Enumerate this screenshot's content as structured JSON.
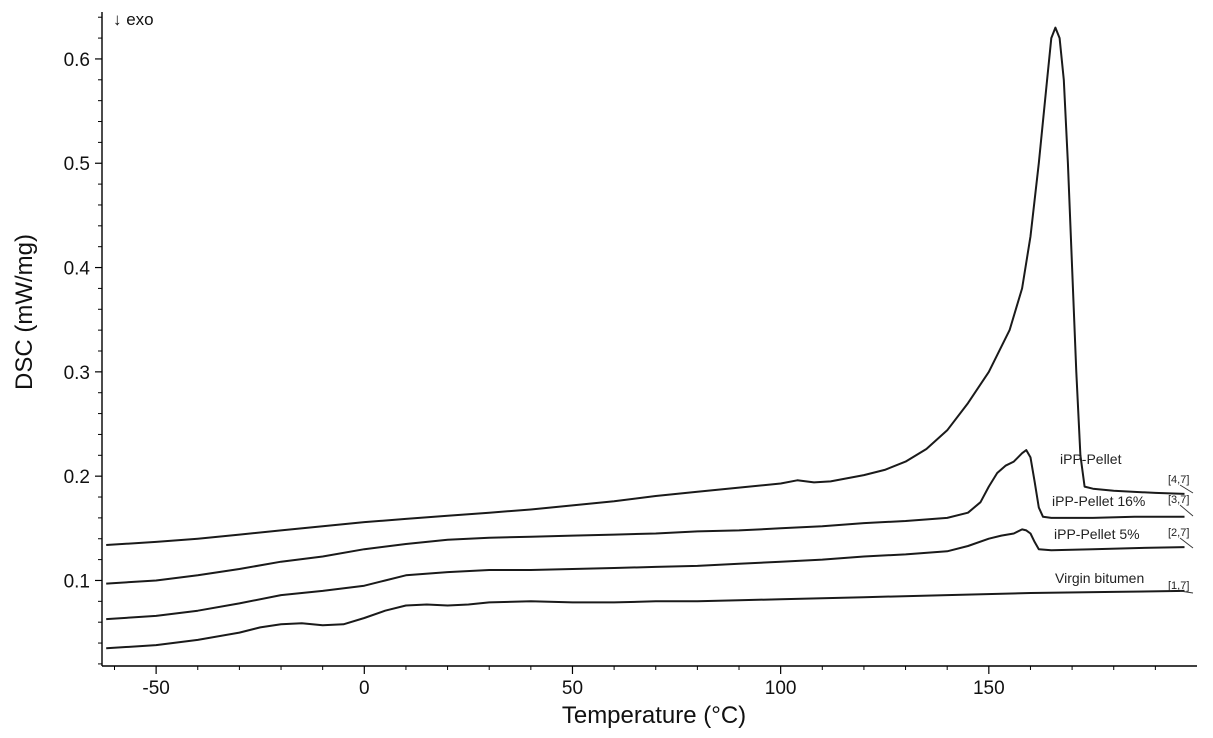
{
  "chart_data": {
    "type": "line",
    "title": "",
    "xlabel": "Temperature (°C)",
    "ylabel": "DSC  (mW/mg)",
    "annotation": "↓ exo",
    "xlim": [
      -63,
      200
    ],
    "ylim": [
      0.018,
      0.645
    ],
    "xticks": [
      -50,
      0,
      50,
      100,
      150
    ],
    "xtick_labels": [
      "-50",
      "0",
      "50",
      "100",
      "150"
    ],
    "yticks": [
      0.1,
      0.2,
      0.3,
      0.4,
      0.5,
      0.6
    ],
    "ytick_labels": [
      "0.1",
      "0.2",
      "0.3",
      "0.4",
      "0.5",
      "0.6"
    ],
    "grid": false,
    "legend": "inline labels at right end of curves",
    "series": [
      {
        "name": "iPP-Pellet",
        "tag": "[4,7]",
        "points": [
          [
            -62,
            0.134
          ],
          [
            -50,
            0.137
          ],
          [
            -40,
            0.14
          ],
          [
            -30,
            0.144
          ],
          [
            -20,
            0.148
          ],
          [
            -10,
            0.152
          ],
          [
            0,
            0.156
          ],
          [
            10,
            0.159
          ],
          [
            20,
            0.162
          ],
          [
            30,
            0.165
          ],
          [
            40,
            0.168
          ],
          [
            50,
            0.172
          ],
          [
            60,
            0.176
          ],
          [
            70,
            0.181
          ],
          [
            80,
            0.185
          ],
          [
            90,
            0.189
          ],
          [
            100,
            0.193
          ],
          [
            104,
            0.196
          ],
          [
            108,
            0.194
          ],
          [
            112,
            0.195
          ],
          [
            120,
            0.201
          ],
          [
            125,
            0.206
          ],
          [
            130,
            0.214
          ],
          [
            135,
            0.226
          ],
          [
            140,
            0.244
          ],
          [
            145,
            0.27
          ],
          [
            150,
            0.3
          ],
          [
            155,
            0.34
          ],
          [
            158,
            0.38
          ],
          [
            160,
            0.43
          ],
          [
            162,
            0.5
          ],
          [
            164,
            0.58
          ],
          [
            165,
            0.62
          ],
          [
            166,
            0.63
          ],
          [
            167,
            0.62
          ],
          [
            168,
            0.58
          ],
          [
            169,
            0.5
          ],
          [
            170,
            0.4
          ],
          [
            171,
            0.3
          ],
          [
            172,
            0.22
          ],
          [
            173,
            0.19
          ],
          [
            175,
            0.188
          ],
          [
            180,
            0.186
          ],
          [
            190,
            0.184
          ],
          [
            197,
            0.183
          ]
        ]
      },
      {
        "name": "iPP-Pellet 16%",
        "tag": "[3,7]",
        "points": [
          [
            -62,
            0.097
          ],
          [
            -50,
            0.1
          ],
          [
            -40,
            0.105
          ],
          [
            -30,
            0.111
          ],
          [
            -20,
            0.118
          ],
          [
            -10,
            0.123
          ],
          [
            0,
            0.13
          ],
          [
            10,
            0.135
          ],
          [
            20,
            0.139
          ],
          [
            30,
            0.141
          ],
          [
            40,
            0.142
          ],
          [
            50,
            0.143
          ],
          [
            60,
            0.144
          ],
          [
            70,
            0.145
          ],
          [
            80,
            0.147
          ],
          [
            90,
            0.148
          ],
          [
            100,
            0.15
          ],
          [
            110,
            0.152
          ],
          [
            120,
            0.155
          ],
          [
            130,
            0.157
          ],
          [
            140,
            0.16
          ],
          [
            145,
            0.165
          ],
          [
            148,
            0.175
          ],
          [
            150,
            0.19
          ],
          [
            152,
            0.203
          ],
          [
            154,
            0.21
          ],
          [
            156,
            0.214
          ],
          [
            158,
            0.222
          ],
          [
            159,
            0.225
          ],
          [
            160,
            0.218
          ],
          [
            161,
            0.195
          ],
          [
            162,
            0.17
          ],
          [
            163,
            0.161
          ],
          [
            165,
            0.16
          ],
          [
            175,
            0.16
          ],
          [
            185,
            0.161
          ],
          [
            197,
            0.161
          ]
        ]
      },
      {
        "name": "iPP-Pellet 5%",
        "tag": "[2,7]",
        "points": [
          [
            -62,
            0.063
          ],
          [
            -50,
            0.066
          ],
          [
            -40,
            0.071
          ],
          [
            -30,
            0.078
          ],
          [
            -20,
            0.086
          ],
          [
            -10,
            0.09
          ],
          [
            0,
            0.095
          ],
          [
            5,
            0.1
          ],
          [
            10,
            0.105
          ],
          [
            20,
            0.108
          ],
          [
            30,
            0.11
          ],
          [
            40,
            0.11
          ],
          [
            50,
            0.111
          ],
          [
            60,
            0.112
          ],
          [
            70,
            0.113
          ],
          [
            80,
            0.114
          ],
          [
            90,
            0.116
          ],
          [
            100,
            0.118
          ],
          [
            110,
            0.12
          ],
          [
            120,
            0.123
          ],
          [
            130,
            0.125
          ],
          [
            140,
            0.128
          ],
          [
            145,
            0.133
          ],
          [
            150,
            0.14
          ],
          [
            153,
            0.143
          ],
          [
            156,
            0.145
          ],
          [
            158,
            0.149
          ],
          [
            159,
            0.148
          ],
          [
            160,
            0.145
          ],
          [
            161,
            0.137
          ],
          [
            162,
            0.13
          ],
          [
            165,
            0.129
          ],
          [
            175,
            0.13
          ],
          [
            185,
            0.131
          ],
          [
            197,
            0.132
          ]
        ]
      },
      {
        "name": "Virgin bitumen",
        "tag": "[1,7]",
        "points": [
          [
            -62,
            0.035
          ],
          [
            -50,
            0.038
          ],
          [
            -40,
            0.043
          ],
          [
            -30,
            0.05
          ],
          [
            -25,
            0.055
          ],
          [
            -20,
            0.058
          ],
          [
            -15,
            0.059
          ],
          [
            -10,
            0.057
          ],
          [
            -5,
            0.058
          ],
          [
            0,
            0.064
          ],
          [
            5,
            0.071
          ],
          [
            10,
            0.076
          ],
          [
            15,
            0.077
          ],
          [
            20,
            0.076
          ],
          [
            25,
            0.077
          ],
          [
            30,
            0.079
          ],
          [
            40,
            0.08
          ],
          [
            50,
            0.079
          ],
          [
            60,
            0.079
          ],
          [
            70,
            0.08
          ],
          [
            80,
            0.08
          ],
          [
            90,
            0.081
          ],
          [
            100,
            0.082
          ],
          [
            120,
            0.084
          ],
          [
            140,
            0.086
          ],
          [
            160,
            0.088
          ],
          [
            180,
            0.089
          ],
          [
            197,
            0.09
          ]
        ]
      }
    ]
  }
}
